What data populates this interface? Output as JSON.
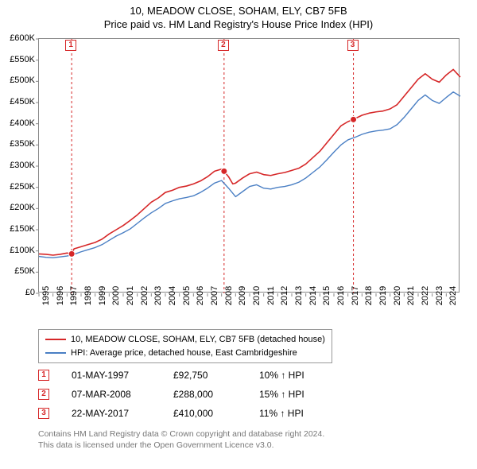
{
  "title_line1": "10, MEADOW CLOSE, SOHAM, ELY, CB7 5FB",
  "title_line2": "Price paid vs. HM Land Registry's House Price Index (HPI)",
  "chart": {
    "type": "line",
    "background_color": "#ffffff",
    "border_color": "#888888",
    "x_start_year": 1995,
    "x_end_year": 2025,
    "xticks": [
      1995,
      1996,
      1997,
      1998,
      1999,
      2000,
      2001,
      2002,
      2003,
      2004,
      2005,
      2006,
      2007,
      2008,
      2009,
      2010,
      2011,
      2012,
      2013,
      2014,
      2015,
      2016,
      2017,
      2018,
      2019,
      2020,
      2021,
      2022,
      2023,
      2024
    ],
    "ylim": [
      0,
      600
    ],
    "ytick_step": 50,
    "ytick_labels": [
      "£0",
      "£50K",
      "£100K",
      "£150K",
      "£200K",
      "£250K",
      "£300K",
      "£350K",
      "£400K",
      "£450K",
      "£500K",
      "£550K",
      "£600K"
    ],
    "series": [
      {
        "name": "10, MEADOW CLOSE, SOHAM, ELY, CB7 5FB (detached house)",
        "color": "#d62728",
        "line_width": 1.6,
        "points": [
          [
            1995.0,
            93
          ],
          [
            1995.5,
            92
          ],
          [
            1996.0,
            90
          ],
          [
            1996.5,
            92
          ],
          [
            1997.0,
            95
          ],
          [
            1997.33,
            93
          ],
          [
            1997.5,
            105
          ],
          [
            1998.0,
            110
          ],
          [
            1998.5,
            115
          ],
          [
            1999.0,
            120
          ],
          [
            1999.5,
            128
          ],
          [
            2000.0,
            140
          ],
          [
            2000.5,
            150
          ],
          [
            2001.0,
            160
          ],
          [
            2001.5,
            172
          ],
          [
            2002.0,
            185
          ],
          [
            2002.5,
            200
          ],
          [
            2003.0,
            215
          ],
          [
            2003.5,
            225
          ],
          [
            2004.0,
            238
          ],
          [
            2004.5,
            243
          ],
          [
            2005.0,
            250
          ],
          [
            2005.5,
            253
          ],
          [
            2006.0,
            258
          ],
          [
            2006.5,
            265
          ],
          [
            2007.0,
            275
          ],
          [
            2007.5,
            288
          ],
          [
            2008.0,
            293
          ],
          [
            2008.18,
            288
          ],
          [
            2008.5,
            275
          ],
          [
            2008.8,
            258
          ],
          [
            2009.0,
            260
          ],
          [
            2009.5,
            272
          ],
          [
            2010.0,
            282
          ],
          [
            2010.5,
            286
          ],
          [
            2011.0,
            280
          ],
          [
            2011.5,
            278
          ],
          [
            2012.0,
            282
          ],
          [
            2012.5,
            285
          ],
          [
            2013.0,
            290
          ],
          [
            2013.5,
            295
          ],
          [
            2014.0,
            305
          ],
          [
            2014.5,
            320
          ],
          [
            2015.0,
            335
          ],
          [
            2015.5,
            355
          ],
          [
            2016.0,
            375
          ],
          [
            2016.5,
            395
          ],
          [
            2017.0,
            405
          ],
          [
            2017.39,
            410
          ],
          [
            2017.5,
            412
          ],
          [
            2018.0,
            420
          ],
          [
            2018.5,
            425
          ],
          [
            2019.0,
            428
          ],
          [
            2019.5,
            430
          ],
          [
            2020.0,
            435
          ],
          [
            2020.5,
            445
          ],
          [
            2021.0,
            465
          ],
          [
            2021.5,
            485
          ],
          [
            2022.0,
            505
          ],
          [
            2022.5,
            518
          ],
          [
            2023.0,
            505
          ],
          [
            2023.5,
            498
          ],
          [
            2024.0,
            515
          ],
          [
            2024.5,
            528
          ],
          [
            2025.0,
            510
          ]
        ]
      },
      {
        "name": "HPI: Average price, detached house, East Cambridgeshire",
        "color": "#4a7fc4",
        "line_width": 1.4,
        "points": [
          [
            1995.0,
            87
          ],
          [
            1995.5,
            85
          ],
          [
            1996.0,
            84
          ],
          [
            1996.5,
            86
          ],
          [
            1997.0,
            88
          ],
          [
            1997.5,
            92
          ],
          [
            1998.0,
            98
          ],
          [
            1998.5,
            103
          ],
          [
            1999.0,
            108
          ],
          [
            1999.5,
            115
          ],
          [
            2000.0,
            125
          ],
          [
            2000.5,
            135
          ],
          [
            2001.0,
            143
          ],
          [
            2001.5,
            152
          ],
          [
            2002.0,
            165
          ],
          [
            2002.5,
            178
          ],
          [
            2003.0,
            190
          ],
          [
            2003.5,
            200
          ],
          [
            2004.0,
            212
          ],
          [
            2004.5,
            218
          ],
          [
            2005.0,
            223
          ],
          [
            2005.5,
            226
          ],
          [
            2006.0,
            230
          ],
          [
            2006.5,
            238
          ],
          [
            2007.0,
            248
          ],
          [
            2007.5,
            260
          ],
          [
            2008.0,
            266
          ],
          [
            2008.5,
            248
          ],
          [
            2009.0,
            228
          ],
          [
            2009.5,
            240
          ],
          [
            2010.0,
            252
          ],
          [
            2010.5,
            256
          ],
          [
            2011.0,
            248
          ],
          [
            2011.5,
            246
          ],
          [
            2012.0,
            250
          ],
          [
            2012.5,
            252
          ],
          [
            2013.0,
            256
          ],
          [
            2013.5,
            262
          ],
          [
            2014.0,
            272
          ],
          [
            2014.5,
            285
          ],
          [
            2015.0,
            298
          ],
          [
            2015.5,
            315
          ],
          [
            2016.0,
            333
          ],
          [
            2016.5,
            350
          ],
          [
            2017.0,
            362
          ],
          [
            2017.5,
            368
          ],
          [
            2018.0,
            375
          ],
          [
            2018.5,
            380
          ],
          [
            2019.0,
            383
          ],
          [
            2019.5,
            385
          ],
          [
            2020.0,
            388
          ],
          [
            2020.5,
            398
          ],
          [
            2021.0,
            415
          ],
          [
            2021.5,
            435
          ],
          [
            2022.0,
            455
          ],
          [
            2022.5,
            468
          ],
          [
            2023.0,
            455
          ],
          [
            2023.5,
            448
          ],
          [
            2024.0,
            462
          ],
          [
            2024.5,
            475
          ],
          [
            2025.0,
            465
          ]
        ]
      }
    ],
    "sale_markers": [
      {
        "n": "1",
        "year": 1997.33,
        "price": 93
      },
      {
        "n": "2",
        "year": 2008.18,
        "price": 288
      },
      {
        "n": "3",
        "year": 2017.39,
        "price": 410
      }
    ],
    "marker_color": "#d62728",
    "vline_color": "#d62728",
    "vline_dash": "3,3"
  },
  "legend": {
    "items": [
      {
        "color": "#d62728",
        "label": "10, MEADOW CLOSE, SOHAM, ELY, CB7 5FB (detached house)"
      },
      {
        "color": "#4a7fc4",
        "label": "HPI: Average price, detached house, East Cambridgeshire"
      }
    ]
  },
  "sales": [
    {
      "n": "1",
      "date": "01-MAY-1997",
      "price": "£92,750",
      "pct": "10% ↑ HPI"
    },
    {
      "n": "2",
      "date": "07-MAR-2008",
      "price": "£288,000",
      "pct": "15% ↑ HPI"
    },
    {
      "n": "3",
      "date": "22-MAY-2017",
      "price": "£410,000",
      "pct": "11% ↑ HPI"
    }
  ],
  "footer_line1": "Contains HM Land Registry data © Crown copyright and database right 2024.",
  "footer_line2": "This data is licensed under the Open Government Licence v3.0."
}
